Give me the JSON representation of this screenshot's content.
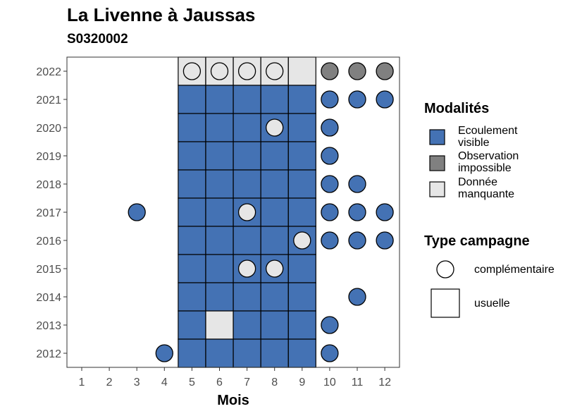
{
  "chart_data": {
    "type": "heatmap",
    "title": "La Livenne à Jaussas",
    "subtitle": "S0320002",
    "xlabel": "Mois",
    "ylabel": "",
    "x_ticks": [
      1,
      2,
      3,
      4,
      5,
      6,
      7,
      8,
      9,
      10,
      11,
      12
    ],
    "y_ticks": [
      2012,
      2013,
      2014,
      2015,
      2016,
      2017,
      2018,
      2019,
      2020,
      2021,
      2022
    ],
    "grid": false,
    "legend_placement": "right",
    "modalites": {
      "title": "Modalités",
      "items": [
        {
          "key": "ecoulement",
          "label_lines": [
            "Ecoulement",
            "visible"
          ],
          "color": "#4472b4"
        },
        {
          "key": "impossible",
          "label_lines": [
            "Observation",
            "impossible"
          ],
          "color": "#808080"
        },
        {
          "key": "manquante",
          "label_lines": [
            "Donnée",
            "manquante"
          ],
          "color": "#e6e6e6"
        }
      ]
    },
    "type_campagne": {
      "title": "Type campagne",
      "items": [
        {
          "key": "complementaire",
          "label": "complémentaire",
          "shape": "circle"
        },
        {
          "key": "usuelle",
          "label": "usuelle",
          "shape": "square"
        }
      ]
    },
    "observations": [
      {
        "year": 2022,
        "month": 5,
        "type": "usuelle",
        "modalite": "manquante"
      },
      {
        "year": 2022,
        "month": 6,
        "type": "usuelle",
        "modalite": "manquante"
      },
      {
        "year": 2022,
        "month": 7,
        "type": "usuelle",
        "modalite": "manquante"
      },
      {
        "year": 2022,
        "month": 8,
        "type": "usuelle",
        "modalite": "manquante"
      },
      {
        "year": 2022,
        "month": 9,
        "type": "usuelle",
        "modalite": "manquante"
      },
      {
        "year": 2022,
        "month": 5,
        "type": "complementaire",
        "modalite": "manquante"
      },
      {
        "year": 2022,
        "month": 6,
        "type": "complementaire",
        "modalite": "manquante"
      },
      {
        "year": 2022,
        "month": 7,
        "type": "complementaire",
        "modalite": "manquante"
      },
      {
        "year": 2022,
        "month": 8,
        "type": "complementaire",
        "modalite": "manquante"
      },
      {
        "year": 2022,
        "month": 10,
        "type": "complementaire",
        "modalite": "impossible"
      },
      {
        "year": 2022,
        "month": 11,
        "type": "complementaire",
        "modalite": "impossible"
      },
      {
        "year": 2022,
        "month": 12,
        "type": "complementaire",
        "modalite": "impossible"
      },
      {
        "year": 2021,
        "month": 5,
        "type": "usuelle",
        "modalite": "ecoulement"
      },
      {
        "year": 2021,
        "month": 6,
        "type": "usuelle",
        "modalite": "ecoulement"
      },
      {
        "year": 2021,
        "month": 7,
        "type": "usuelle",
        "modalite": "ecoulement"
      },
      {
        "year": 2021,
        "month": 8,
        "type": "usuelle",
        "modalite": "ecoulement"
      },
      {
        "year": 2021,
        "month": 9,
        "type": "usuelle",
        "modalite": "ecoulement"
      },
      {
        "year": 2021,
        "month": 10,
        "type": "complementaire",
        "modalite": "ecoulement"
      },
      {
        "year": 2021,
        "month": 11,
        "type": "complementaire",
        "modalite": "ecoulement"
      },
      {
        "year": 2021,
        "month": 12,
        "type": "complementaire",
        "modalite": "ecoulement"
      },
      {
        "year": 2020,
        "month": 5,
        "type": "usuelle",
        "modalite": "ecoulement"
      },
      {
        "year": 2020,
        "month": 6,
        "type": "usuelle",
        "modalite": "ecoulement"
      },
      {
        "year": 2020,
        "month": 7,
        "type": "usuelle",
        "modalite": "ecoulement"
      },
      {
        "year": 2020,
        "month": 8,
        "type": "usuelle",
        "modalite": "ecoulement"
      },
      {
        "year": 2020,
        "month": 9,
        "type": "usuelle",
        "modalite": "ecoulement"
      },
      {
        "year": 2020,
        "month": 8,
        "type": "complementaire",
        "modalite": "manquante"
      },
      {
        "year": 2020,
        "month": 10,
        "type": "complementaire",
        "modalite": "ecoulement"
      },
      {
        "year": 2019,
        "month": 5,
        "type": "usuelle",
        "modalite": "ecoulement"
      },
      {
        "year": 2019,
        "month": 6,
        "type": "usuelle",
        "modalite": "ecoulement"
      },
      {
        "year": 2019,
        "month": 7,
        "type": "usuelle",
        "modalite": "ecoulement"
      },
      {
        "year": 2019,
        "month": 8,
        "type": "usuelle",
        "modalite": "ecoulement"
      },
      {
        "year": 2019,
        "month": 9,
        "type": "usuelle",
        "modalite": "ecoulement"
      },
      {
        "year": 2019,
        "month": 10,
        "type": "complementaire",
        "modalite": "ecoulement"
      },
      {
        "year": 2018,
        "month": 5,
        "type": "usuelle",
        "modalite": "ecoulement"
      },
      {
        "year": 2018,
        "month": 6,
        "type": "usuelle",
        "modalite": "ecoulement"
      },
      {
        "year": 2018,
        "month": 7,
        "type": "usuelle",
        "modalite": "ecoulement"
      },
      {
        "year": 2018,
        "month": 8,
        "type": "usuelle",
        "modalite": "ecoulement"
      },
      {
        "year": 2018,
        "month": 9,
        "type": "usuelle",
        "modalite": "ecoulement"
      },
      {
        "year": 2018,
        "month": 10,
        "type": "complementaire",
        "modalite": "ecoulement"
      },
      {
        "year": 2018,
        "month": 11,
        "type": "complementaire",
        "modalite": "ecoulement"
      },
      {
        "year": 2017,
        "month": 5,
        "type": "usuelle",
        "modalite": "ecoulement"
      },
      {
        "year": 2017,
        "month": 6,
        "type": "usuelle",
        "modalite": "ecoulement"
      },
      {
        "year": 2017,
        "month": 7,
        "type": "usuelle",
        "modalite": "ecoulement"
      },
      {
        "year": 2017,
        "month": 8,
        "type": "usuelle",
        "modalite": "ecoulement"
      },
      {
        "year": 2017,
        "month": 9,
        "type": "usuelle",
        "modalite": "ecoulement"
      },
      {
        "year": 2017,
        "month": 3,
        "type": "complementaire",
        "modalite": "ecoulement"
      },
      {
        "year": 2017,
        "month": 7,
        "type": "complementaire",
        "modalite": "manquante"
      },
      {
        "year": 2017,
        "month": 10,
        "type": "complementaire",
        "modalite": "ecoulement"
      },
      {
        "year": 2017,
        "month": 11,
        "type": "complementaire",
        "modalite": "ecoulement"
      },
      {
        "year": 2017,
        "month": 12,
        "type": "complementaire",
        "modalite": "ecoulement"
      },
      {
        "year": 2016,
        "month": 5,
        "type": "usuelle",
        "modalite": "ecoulement"
      },
      {
        "year": 2016,
        "month": 6,
        "type": "usuelle",
        "modalite": "ecoulement"
      },
      {
        "year": 2016,
        "month": 7,
        "type": "usuelle",
        "modalite": "ecoulement"
      },
      {
        "year": 2016,
        "month": 8,
        "type": "usuelle",
        "modalite": "ecoulement"
      },
      {
        "year": 2016,
        "month": 9,
        "type": "usuelle",
        "modalite": "ecoulement"
      },
      {
        "year": 2016,
        "month": 9,
        "type": "complementaire",
        "modalite": "manquante"
      },
      {
        "year": 2016,
        "month": 10,
        "type": "complementaire",
        "modalite": "ecoulement"
      },
      {
        "year": 2016,
        "month": 11,
        "type": "complementaire",
        "modalite": "ecoulement"
      },
      {
        "year": 2016,
        "month": 12,
        "type": "complementaire",
        "modalite": "ecoulement"
      },
      {
        "year": 2015,
        "month": 5,
        "type": "usuelle",
        "modalite": "ecoulement"
      },
      {
        "year": 2015,
        "month": 6,
        "type": "usuelle",
        "modalite": "ecoulement"
      },
      {
        "year": 2015,
        "month": 7,
        "type": "usuelle",
        "modalite": "ecoulement"
      },
      {
        "year": 2015,
        "month": 8,
        "type": "usuelle",
        "modalite": "ecoulement"
      },
      {
        "year": 2015,
        "month": 9,
        "type": "usuelle",
        "modalite": "ecoulement"
      },
      {
        "year": 2015,
        "month": 7,
        "type": "complementaire",
        "modalite": "manquante"
      },
      {
        "year": 2015,
        "month": 8,
        "type": "complementaire",
        "modalite": "manquante"
      },
      {
        "year": 2014,
        "month": 5,
        "type": "usuelle",
        "modalite": "ecoulement"
      },
      {
        "year": 2014,
        "month": 6,
        "type": "usuelle",
        "modalite": "ecoulement"
      },
      {
        "year": 2014,
        "month": 7,
        "type": "usuelle",
        "modalite": "ecoulement"
      },
      {
        "year": 2014,
        "month": 8,
        "type": "usuelle",
        "modalite": "ecoulement"
      },
      {
        "year": 2014,
        "month": 9,
        "type": "usuelle",
        "modalite": "ecoulement"
      },
      {
        "year": 2014,
        "month": 11,
        "type": "complementaire",
        "modalite": "ecoulement"
      },
      {
        "year": 2013,
        "month": 5,
        "type": "usuelle",
        "modalite": "ecoulement"
      },
      {
        "year": 2013,
        "month": 6,
        "type": "usuelle",
        "modalite": "manquante"
      },
      {
        "year": 2013,
        "month": 7,
        "type": "usuelle",
        "modalite": "ecoulement"
      },
      {
        "year": 2013,
        "month": 8,
        "type": "usuelle",
        "modalite": "ecoulement"
      },
      {
        "year": 2013,
        "month": 9,
        "type": "usuelle",
        "modalite": "ecoulement"
      },
      {
        "year": 2013,
        "month": 10,
        "type": "complementaire",
        "modalite": "ecoulement"
      },
      {
        "year": 2012,
        "month": 5,
        "type": "usuelle",
        "modalite": "ecoulement"
      },
      {
        "year": 2012,
        "month": 6,
        "type": "usuelle",
        "modalite": "ecoulement"
      },
      {
        "year": 2012,
        "month": 7,
        "type": "usuelle",
        "modalite": "ecoulement"
      },
      {
        "year": 2012,
        "month": 8,
        "type": "usuelle",
        "modalite": "ecoulement"
      },
      {
        "year": 2012,
        "month": 9,
        "type": "usuelle",
        "modalite": "ecoulement"
      },
      {
        "year": 2012,
        "month": 4,
        "type": "complementaire",
        "modalite": "ecoulement"
      },
      {
        "year": 2012,
        "month": 10,
        "type": "complementaire",
        "modalite": "ecoulement"
      }
    ]
  }
}
